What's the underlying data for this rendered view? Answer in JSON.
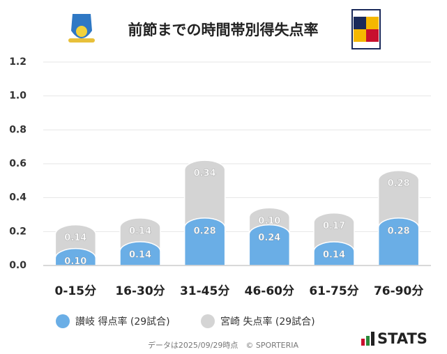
{
  "chart_data": {
    "type": "bar",
    "stacked": true,
    "title": "前節までの時間帯別得失点率",
    "categories": [
      "0-15分",
      "16-30分",
      "31-45分",
      "46-60分",
      "61-75分",
      "76-90分"
    ],
    "series": [
      {
        "name": "讃岐 得点率 (29試合)",
        "color": "#6aaee6",
        "values": [
          0.1,
          0.14,
          0.28,
          0.24,
          0.14,
          0.28
        ],
        "value_labels": [
          "0.10",
          "0.14",
          "0.28",
          "0.24",
          "0.14",
          "0.28"
        ]
      },
      {
        "name": "宮崎 失点率 (29試合)",
        "color": "#d4d4d4",
        "values": [
          0.14,
          0.14,
          0.34,
          0.1,
          0.17,
          0.28
        ],
        "value_labels": [
          "0.14",
          "0.14",
          "0.34",
          "0.10",
          "0.17",
          "0.28"
        ]
      }
    ],
    "ylim": [
      0,
      1.2
    ],
    "yticks": [
      {
        "value": 0,
        "label": "0.0"
      },
      {
        "value": 0.2,
        "label": "0.2"
      },
      {
        "value": 0.4,
        "label": "0.4"
      },
      {
        "value": 0.6,
        "label": "0.6"
      },
      {
        "value": 0.8,
        "label": "0.8"
      },
      {
        "value": 1,
        "label": "1.0"
      },
      {
        "value": 1.2,
        "label": "1.2"
      }
    ],
    "grid": true,
    "note": "データは2025/09/29時点　© SPORTERIA",
    "brand": "STATS"
  }
}
